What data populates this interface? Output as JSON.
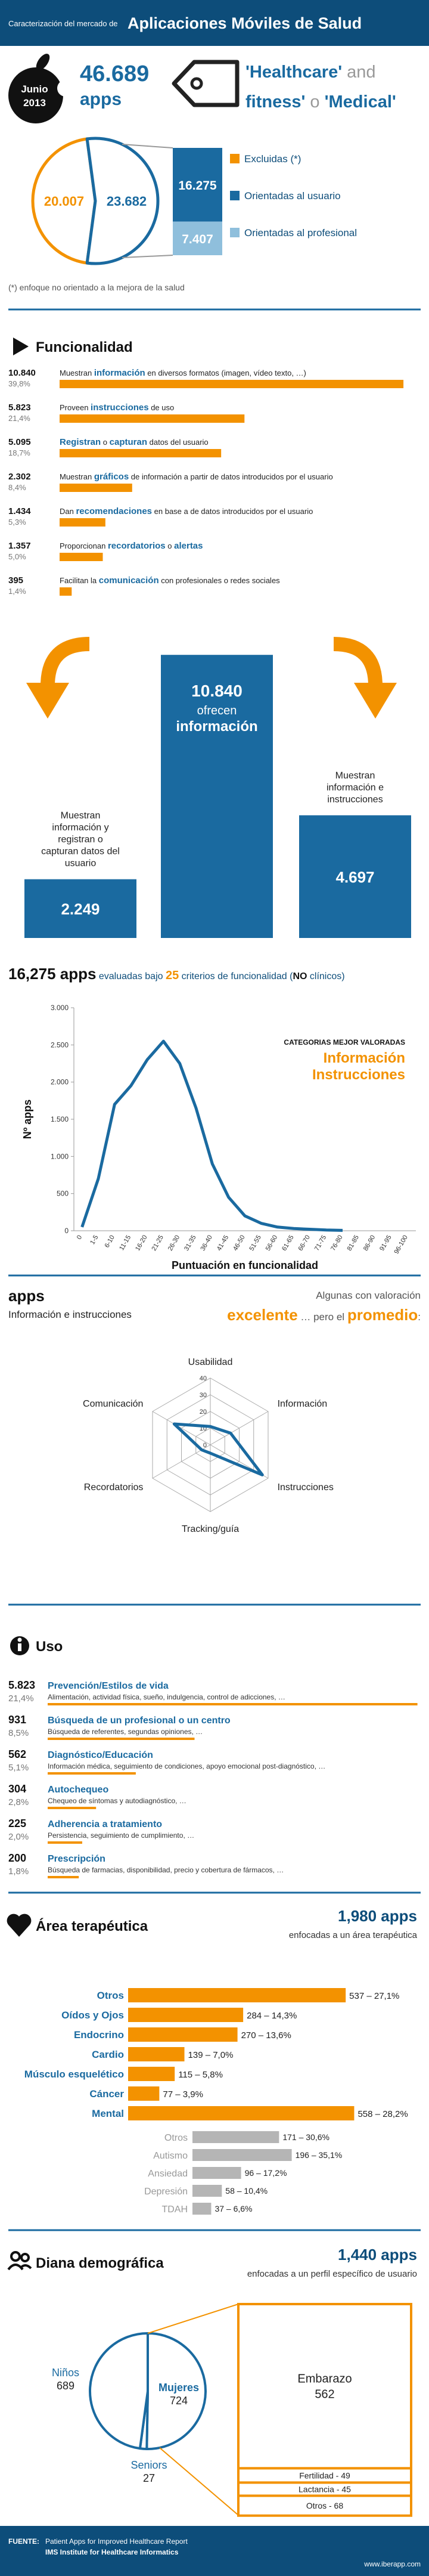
{
  "header": {
    "prefix": "Caracterización del mercado de",
    "title": "Aplicaciones Móviles de Salud"
  },
  "summary": {
    "month": "Junio",
    "year": "2013",
    "total": "46.689",
    "unit": "apps",
    "tag_lines": [
      [
        {
          "text": "'Healthcare'",
          "em": true
        },
        {
          "text": " and"
        }
      ],
      [
        {
          "text": "fitness'",
          "em": true
        },
        {
          "text": " o "
        },
        {
          "text": "'Medical'",
          "em": true
        }
      ]
    ]
  },
  "market": {
    "slices": [
      {
        "value": 20007,
        "label": "20.007",
        "color": "#f39200"
      },
      {
        "value": 23682,
        "label": "23.682",
        "color": "#1a6aa0"
      }
    ],
    "breakdown": [
      {
        "value": 16275,
        "label": "16.275",
        "color": "#1a6aa0"
      },
      {
        "value": 7407,
        "label": "7.407",
        "color": "#8fbfdc"
      }
    ],
    "legend": [
      {
        "name": "Excluidas (*)",
        "color": "#f39200"
      },
      {
        "name": "Orientadas al usuario",
        "color": "#1a6aa0"
      },
      {
        "name": "Orientadas al profesional",
        "color": "#8fbfdc"
      }
    ],
    "note": "(*) enfoque no orientado a la mejora de la salud"
  },
  "functionality": {
    "title": "Funcionalidad",
    "color": "#f39200",
    "items": [
      {
        "count": {
          "value": 10840,
          "label": "10.840"
        },
        "percent": {
          "value": 39.8,
          "label": "39,8%"
        },
        "text": [
          {
            "text": "Muestran "
          },
          {
            "text": "información",
            "em": true
          },
          {
            "text": " en diversos formatos (imagen, vídeo texto, …)"
          }
        ]
      },
      {
        "count": {
          "value": 5823,
          "label": "5.823"
        },
        "percent": {
          "value": 21.4,
          "label": "21,4%"
        },
        "text": [
          {
            "text": "Proveen "
          },
          {
            "text": "instrucciones",
            "em": true
          },
          {
            "text": " de uso"
          }
        ]
      },
      {
        "count": {
          "value": 5095,
          "label": "5.095"
        },
        "percent": {
          "value": 18.7,
          "label": "18,7%"
        },
        "text": [
          {
            "text": "Registran",
            "em": true
          },
          {
            "text": " o "
          },
          {
            "text": "capturan",
            "em": true
          },
          {
            "text": " datos del usuario"
          }
        ]
      },
      {
        "count": {
          "value": 2302,
          "label": "2.302"
        },
        "percent": {
          "value": 8.4,
          "label": "8,4%"
        },
        "text": [
          {
            "text": "Muestran "
          },
          {
            "text": "gráficos",
            "em": true
          },
          {
            "text": " de información a partir de datos introducidos por el usuario"
          }
        ]
      },
      {
        "count": {
          "value": 1434,
          "label": "1.434"
        },
        "percent": {
          "value": 5.3,
          "label": "5,3%"
        },
        "text": [
          {
            "text": "Dan "
          },
          {
            "text": "recomendaciones",
            "em": true
          },
          {
            "text": " en base a de datos introducidos por el usuario"
          }
        ]
      },
      {
        "count": {
          "value": 1357,
          "label": "1.357"
        },
        "percent": {
          "value": 5.0,
          "label": "5,0%"
        },
        "text": [
          {
            "text": "Proporcionan "
          },
          {
            "text": "recordatorios",
            "em": true
          },
          {
            "text": " o "
          },
          {
            "text": "alertas",
            "em": true
          }
        ]
      },
      {
        "count": 395,
        "percent": {
          "value": 1.4,
          "label": "1,4%"
        },
        "text": [
          {
            "text": "Facilitan la "
          },
          {
            "text": "comunicación",
            "em": true
          },
          {
            "text": " con profesionales o redes sociales"
          }
        ]
      }
    ]
  },
  "highlights": {
    "color": "#1a6aa0",
    "bars": [
      {
        "value": 2249,
        "label": "2.249",
        "caption": [
          "Muestran",
          "información y",
          "registran o",
          "capturan datos del",
          "usuario"
        ]
      },
      {
        "value": 10840,
        "label": "10.840",
        "caption": [
          "ofrecen",
          "información"
        ]
      },
      {
        "value": 4697,
        "label": "4.697",
        "caption": [
          "Muestran",
          "información e",
          "instrucciones"
        ]
      }
    ]
  },
  "evaluation": {
    "heading": [
      {
        "text": "16,275 apps",
        "strong": true
      },
      {
        "text": " evaluadas bajo "
      },
      {
        "text": "25",
        "em": true
      },
      {
        "text": " criterios de funcionalidad"
      },
      {
        "text": " ("
      },
      {
        "text": "NO",
        "strong": true
      },
      {
        "text": " clínicos)"
      }
    ]
  },
  "chart_data": [
    {
      "type": "line",
      "ylabel": "Nº apps",
      "xlabel": "Puntuación en funcionalidad",
      "color": "#1a6aa0",
      "categories": [
        "0",
        "1-5",
        "6-10",
        "11-15",
        "16-20",
        "21-25",
        "26-30",
        "31-35",
        "36-40",
        "41-45",
        "46-50",
        "51-55",
        "56-60",
        "61-65",
        "66-70",
        "71-75",
        "76-80",
        "81-85",
        "86-90",
        "91-95",
        "96-100"
      ],
      "values": [
        50,
        700,
        1700,
        1950,
        2300,
        2550,
        2250,
        1650,
        900,
        450,
        200,
        100,
        50,
        30,
        20,
        10,
        5,
        null,
        null,
        null,
        null
      ],
      "ylim": [
        0,
        3000
      ],
      "yticks": [
        0,
        500,
        {
          "value": 1000,
          "label": "1.000"
        },
        {
          "value": 1500,
          "label": "1.500"
        },
        {
          "value": 2000,
          "label": "2.000"
        },
        {
          "value": 2500,
          "label": "2.500"
        },
        {
          "value": 3000,
          "label": "3.000"
        }
      ],
      "annotation": {
        "title": "CATEGORIAS MEJOR VALORADAS",
        "items": [
          "Información",
          "Instrucciones"
        ]
      }
    },
    {
      "type": "radar",
      "color": "#1a6aa0",
      "heading_left": [
        "apps",
        "Información e instrucciones"
      ],
      "heading_right_top": "Algunas con valoración",
      "heading_right": [
        {
          "text": "excelente",
          "em": true
        },
        {
          "text": " … pero el "
        },
        {
          "text": "promedio",
          "em": true
        },
        {
          "text": ":"
        }
      ],
      "categories": [
        "Usabilidad",
        "Información",
        "Instrucciones",
        "Tracking/guía",
        "Recordatorios",
        "Comunicación"
      ],
      "values": [
        11,
        14,
        36,
        5,
        6,
        25
      ],
      "rlim": [
        0,
        40
      ],
      "rticks": [
        0,
        10,
        20,
        30,
        40
      ]
    }
  ],
  "use": {
    "title": "Uso",
    "color": "#f39200",
    "items": [
      {
        "count": {
          "value": 5823,
          "label": "5.823"
        },
        "percent": {
          "value": 21.4,
          "label": "21,4%"
        },
        "name": "Prevención/Estilos de vida",
        "detail": "Alimentación, actividad física, sueño, indulgencia, control de adicciones, …"
      },
      {
        "count": 931,
        "percent": {
          "value": 8.5,
          "label": "8,5%"
        },
        "name": "Búsqueda de un profesional o un centro",
        "detail": "Búsqueda de referentes, segundas opiniones, …"
      },
      {
        "count": 562,
        "percent": {
          "value": 5.1,
          "label": "5,1%"
        },
        "name": "Diagnóstico/Educación",
        "detail": "Información médica, seguimiento de condiciones, apoyo emocional post-diagnóstico, …"
      },
      {
        "count": 304,
        "percent": {
          "value": 2.8,
          "label": "2,8%"
        },
        "name": "Autochequeo",
        "detail": "Chequeo de síntomas y autodiagnóstico, …"
      },
      {
        "count": 225,
        "percent": {
          "value": 2.0,
          "label": "2,0%"
        },
        "name": "Adherencia a tratamiento",
        "detail": "Persistencia, seguimiento de cumplimiento, …"
      },
      {
        "count": 200,
        "percent": {
          "value": 1.8,
          "label": "1,8%"
        },
        "name": "Prescripción",
        "detail": "Búsqueda de farmacias, disponibilidad, precio y cobertura de fármacos, …"
      }
    ]
  },
  "therapeutic": {
    "title": "Área terapéutica",
    "total": "1,980 apps",
    "subtitle": "enfocadas a un área terapéutica",
    "color": "#f39200",
    "mental_color": "#b5b5b5",
    "main": [
      {
        "name": "Otros",
        "value": 537,
        "label": "537 – 27,1%"
      },
      {
        "name": "Oídos y Ojos",
        "value": 284,
        "label": "284 – 14,3%"
      },
      {
        "name": "Endocrino",
        "value": 270,
        "label": "270 – 13,6%"
      },
      {
        "name": "Cardio",
        "value": 139,
        "label": "139 – 7,0%"
      },
      {
        "name": "Músculo esquelético",
        "value": 115,
        "label": "115 – 5,8%"
      },
      {
        "name": "Cáncer",
        "value": 77,
        "label": "77 – 3,9%"
      },
      {
        "name": "Mental",
        "value": 558,
        "label": "558 – 28,2%"
      }
    ],
    "mental": [
      {
        "name": "Otros",
        "value": 171,
        "label": "171 – 30,6%"
      },
      {
        "name": "Autismo",
        "value": 196,
        "label": "196 – 35,1%"
      },
      {
        "name": "Ansiedad",
        "value": 96,
        "label": "96 – 17,2%"
      },
      {
        "name": "Depresión",
        "value": 58,
        "label": "58 – 10,4%"
      },
      {
        "name": "TDAH",
        "value": 37,
        "label": "37 – 6,6%"
      }
    ]
  },
  "demographic": {
    "title": "Diana demográfica",
    "total": "1,440 apps",
    "subtitle": "enfocadas a un perfil específico de usuario",
    "groups": [
      {
        "name": "Mujeres",
        "value": 724
      },
      {
        "name": "Seniors",
        "value": 27
      },
      {
        "name": "Niños",
        "value": 689
      }
    ],
    "women": [
      {
        "name": "Embarazo",
        "value": 562
      },
      {
        "value": 49,
        "label": "Fertilidad - 49"
      },
      {
        "value": 45,
        "label": "Lactancia - 45"
      },
      {
        "value": 68,
        "label": "Otros - 68"
      }
    ]
  },
  "footer": {
    "source_label": "FUENTE:",
    "source": "Patient Apps for Improved Healthcare Report",
    "institute": "IMS Institute for Healthcare Informatics",
    "url": "www.iberapp.com"
  }
}
